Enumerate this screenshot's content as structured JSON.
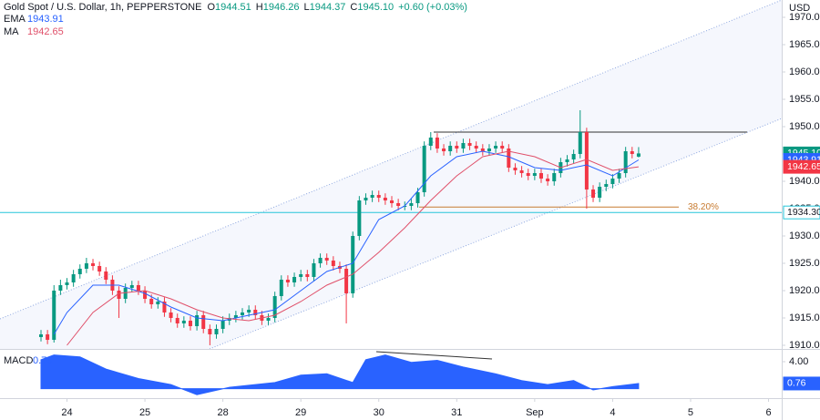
{
  "chart_data": {
    "type": "candlestick",
    "title": "Gold Spot / U.S. Dollar, 1h, PEPPERSTONE",
    "ohlc_legend": {
      "o_label": "O",
      "o": "1944.51",
      "h_label": "H",
      "h": "1946.26",
      "l_label": "L",
      "l": "1944.37",
      "c_label": "C",
      "c": "1945.10",
      "change": "+0.60 (+0.03%)"
    },
    "currency": "USD",
    "up_color": "#089981",
    "down_color": "#f23645",
    "open": [
      1911.5,
      1912,
      1911,
      1920,
      1921,
      1921.5,
      1923,
      1924,
      1925,
      1924.5,
      1923.5,
      1922,
      1920,
      1918.5,
      1920.5,
      1921,
      1920,
      1918.5,
      1917.5,
      1918,
      1916,
      1915,
      1914,
      1914.5,
      1913.5,
      1915.5,
      1913,
      1912,
      1913,
      1914.5,
      1915,
      1915.5,
      1916,
      1916.5,
      1915.5,
      1914.5,
      1915,
      1919,
      1922,
      1921.5,
      1922.5,
      1923,
      1922.5,
      1925,
      1926,
      1925.5,
      1924.5,
      1924,
      1919.5,
      1930,
      1936.5,
      1937,
      1937.5,
      1937,
      1936.5,
      1936,
      1935.5,
      1935.5,
      1936,
      1938,
      1946.5,
      1948,
      1946,
      1945.5,
      1946.5,
      1946,
      1947,
      1946.5,
      1946,
      1945.5,
      1946,
      1946.5,
      1946,
      1942.5,
      1942,
      1941.5,
      1941,
      1941.5,
      1940.5,
      1940,
      1941.5,
      1943.5,
      1944,
      1945,
      1949,
      1938.5,
      1937,
      1939,
      1939.5,
      1940.5,
      1941.5,
      1945.5,
      1944.51
    ],
    "high": [
      1912.8,
      1912.8,
      1921,
      1922,
      1922.3,
      1923.8,
      1924.8,
      1926,
      1925.8,
      1925.3,
      1924.3,
      1922.8,
      1920.8,
      1921.3,
      1921.8,
      1921.8,
      1920.8,
      1919.3,
      1918.8,
      1918.8,
      1916.8,
      1915.8,
      1915.3,
      1915.3,
      1916.3,
      1916.3,
      1913.8,
      1913.8,
      1915.3,
      1915.8,
      1916.3,
      1916.8,
      1917.3,
      1917.3,
      1916.3,
      1915.8,
      1919.8,
      1922.8,
      1922.8,
      1923.3,
      1923.8,
      1923.8,
      1925.8,
      1926.8,
      1926.8,
      1926.3,
      1925.3,
      1924.8,
      1930.8,
      1937.3,
      1937.8,
      1938.3,
      1938.3,
      1937.8,
      1937.3,
      1936.8,
      1936.3,
      1936.8,
      1938.8,
      1947.3,
      1949,
      1948.8,
      1946.8,
      1947.3,
      1947.3,
      1947.8,
      1947.8,
      1947.3,
      1946.8,
      1946.8,
      1947.3,
      1947.3,
      1946.8,
      1943.3,
      1942.8,
      1942.3,
      1942.3,
      1942.3,
      1941.3,
      1942.3,
      1944.3,
      1944.8,
      1945.8,
      1953,
      1949.8,
      1939.3,
      1939.8,
      1940.3,
      1941.3,
      1942.3,
      1946.3,
      1946.3,
      1946.26
    ],
    "low": [
      1910.7,
      1910.2,
      1910.5,
      1919.2,
      1920.2,
      1920.7,
      1922.2,
      1923.2,
      1923.7,
      1922.7,
      1921.2,
      1919.2,
      1915,
      1917.7,
      1919.7,
      1919.2,
      1917.7,
      1916.7,
      1916.7,
      1915.2,
      1914.2,
      1913.2,
      1913.2,
      1912.7,
      1912.7,
      1912.2,
      1910,
      1911.2,
      1912.2,
      1913.7,
      1914.2,
      1914.7,
      1915.2,
      1914.7,
      1913.7,
      1913.7,
      1914.2,
      1918.2,
      1920.7,
      1920.7,
      1921.7,
      1921.7,
      1921.7,
      1924.2,
      1924.7,
      1923.7,
      1923.2,
      1914,
      1918.7,
      1929.2,
      1935.7,
      1936.2,
      1936.2,
      1935.7,
      1935.2,
      1934.7,
      1934.7,
      1934.7,
      1935.2,
      1937.2,
      1945.7,
      1945.2,
      1944.7,
      1944.7,
      1945.2,
      1945.2,
      1945.7,
      1945.2,
      1944.7,
      1944.7,
      1945.2,
      1945.2,
      1941.7,
      1941.2,
      1940.7,
      1940.2,
      1940.2,
      1939.7,
      1939.2,
      1939.2,
      1940.7,
      1942.7,
      1943.2,
      1944.2,
      1935,
      1936.2,
      1936.2,
      1938.2,
      1938.7,
      1939.7,
      1940.7,
      1944.2,
      1944.37
    ],
    "close": [
      1912,
      1911,
      1920,
      1921,
      1921.5,
      1923,
      1924,
      1925,
      1924.5,
      1923.5,
      1922,
      1920,
      1918.5,
      1920.5,
      1921,
      1920,
      1918.5,
      1917.5,
      1918,
      1916,
      1915,
      1914,
      1914.5,
      1913.5,
      1915.5,
      1913,
      1912,
      1913,
      1914.5,
      1915,
      1915.5,
      1916,
      1916.5,
      1915.5,
      1914.5,
      1915,
      1919,
      1922,
      1921.5,
      1922.5,
      1923,
      1922.5,
      1925,
      1926,
      1925.5,
      1924.5,
      1924,
      1919.5,
      1930,
      1936.5,
      1937,
      1937.5,
      1937,
      1936.5,
      1936,
      1935.5,
      1935.5,
      1936,
      1938,
      1946.5,
      1948,
      1946,
      1945.5,
      1946.5,
      1946,
      1947,
      1946.5,
      1946,
      1945.5,
      1946,
      1946.5,
      1946,
      1942.5,
      1942,
      1941.5,
      1941,
      1941.5,
      1940.5,
      1940,
      1941.5,
      1943.5,
      1944,
      1945,
      1949,
      1938.5,
      1937,
      1939,
      1939.5,
      1940.5,
      1941.5,
      1945.5,
      1945,
      1945.1
    ],
    "xlim": [
      -6.31,
      114.03
    ],
    "xticks": [
      {
        "value": 4,
        "label": "24"
      },
      {
        "value": 16,
        "label": "25"
      },
      {
        "value": 28,
        "label": "28"
      },
      {
        "value": 40,
        "label": "29"
      },
      {
        "value": 52,
        "label": "30"
      },
      {
        "value": 64,
        "label": "31"
      },
      {
        "value": 76,
        "label": "Sep"
      },
      {
        "value": 88,
        "label": "4"
      },
      {
        "value": 100,
        "label": "5"
      },
      {
        "value": 112,
        "label": "6"
      }
    ],
    "ylim": [
      1909.33,
      1973.17
    ],
    "yticks": [
      {
        "value": 1910,
        "label": "1910.00"
      },
      {
        "value": 1915,
        "label": "1915.00"
      },
      {
        "value": 1920,
        "label": "1920.00"
      },
      {
        "value": 1925,
        "label": "1925.00"
      },
      {
        "value": 1930,
        "label": "1930.00"
      },
      {
        "value": 1935,
        "label": "1935.00"
      },
      {
        "value": 1940,
        "label": "1940.00"
      },
      {
        "value": 1945,
        "label": "1945.00"
      },
      {
        "value": 1950,
        "label": "1950.00"
      },
      {
        "value": 1955,
        "label": "1955.00"
      },
      {
        "value": 1960,
        "label": "1960.00"
      },
      {
        "value": 1965,
        "label": "1965.00"
      },
      {
        "value": 1970,
        "label": "1970.00"
      }
    ],
    "series": [
      {
        "name": "EMA",
        "value_label": "1943.91",
        "color": "#2962ff",
        "x": [
          2,
          4,
          8,
          12,
          16,
          20,
          24,
          28,
          32,
          36,
          40,
          44,
          48,
          52,
          56,
          60,
          64,
          68,
          72,
          76,
          80,
          84,
          88,
          92
        ],
        "values": [
          1912,
          1916,
          1921,
          1921,
          1919.5,
          1917,
          1915,
          1914.5,
          1915.5,
          1916.5,
          1920,
          1923.5,
          1925,
          1933,
          1935.5,
          1941,
          1944.5,
          1945.5,
          1944.5,
          1942.5,
          1942,
          1943,
          1941,
          1943.91
        ]
      },
      {
        "name": "MA",
        "value_label": "1942.65",
        "color": "#e0506a",
        "x": [
          4,
          8,
          12,
          16,
          20,
          24,
          28,
          32,
          36,
          40,
          44,
          48,
          52,
          56,
          60,
          64,
          68,
          72,
          76,
          80,
          84,
          88,
          92
        ],
        "values": [
          1910,
          1916,
          1919.5,
          1920,
          1918.5,
          1916.5,
          1915,
          1914.5,
          1915.5,
          1918,
          1921,
          1923,
          1927,
          1931.5,
          1936.5,
          1941,
          1944.5,
          1945.5,
          1944.5,
          1942.5,
          1944,
          1942,
          1942.65
        ]
      }
    ],
    "price_labels": [
      {
        "value": 1945.1,
        "label": "1945.10",
        "color": "#089981"
      },
      {
        "value": 1943.91,
        "label": "1943.91",
        "color": "#2962ff"
      },
      {
        "value": 1942.65,
        "label": "1942.65",
        "color": "#f23645"
      }
    ],
    "level": {
      "value": 1934.3,
      "label": "1934.30",
      "color": "#26c6da"
    },
    "fib": {
      "value": 1935.3,
      "label": "38.20%",
      "color": "#c77b30"
    },
    "macd": {
      "name": "MACD",
      "value_label": "0.76",
      "color": "#2962ff",
      "x": [
        0,
        2,
        6,
        10,
        15,
        20,
        24,
        29,
        36,
        40,
        44,
        48,
        50,
        53,
        57,
        61,
        65,
        70,
        74,
        78,
        82,
        85,
        88,
        92
      ],
      "values": [
        4.3,
        5,
        4.7,
        2.9,
        1.5,
        0.6,
        -0.9,
        0.2,
        0.9,
        2,
        2.2,
        0.9,
        4.3,
        5,
        3.9,
        4.2,
        3.2,
        2.2,
        1.2,
        0.6,
        1.2,
        -0.2,
        0.3,
        0.76
      ],
      "ylim": [
        -1.41,
        5.62
      ],
      "yticks": [
        {
          "value": 4,
          "label": "4.00"
        }
      ],
      "last": {
        "value": 0.76,
        "label": "0.76"
      }
    }
  }
}
